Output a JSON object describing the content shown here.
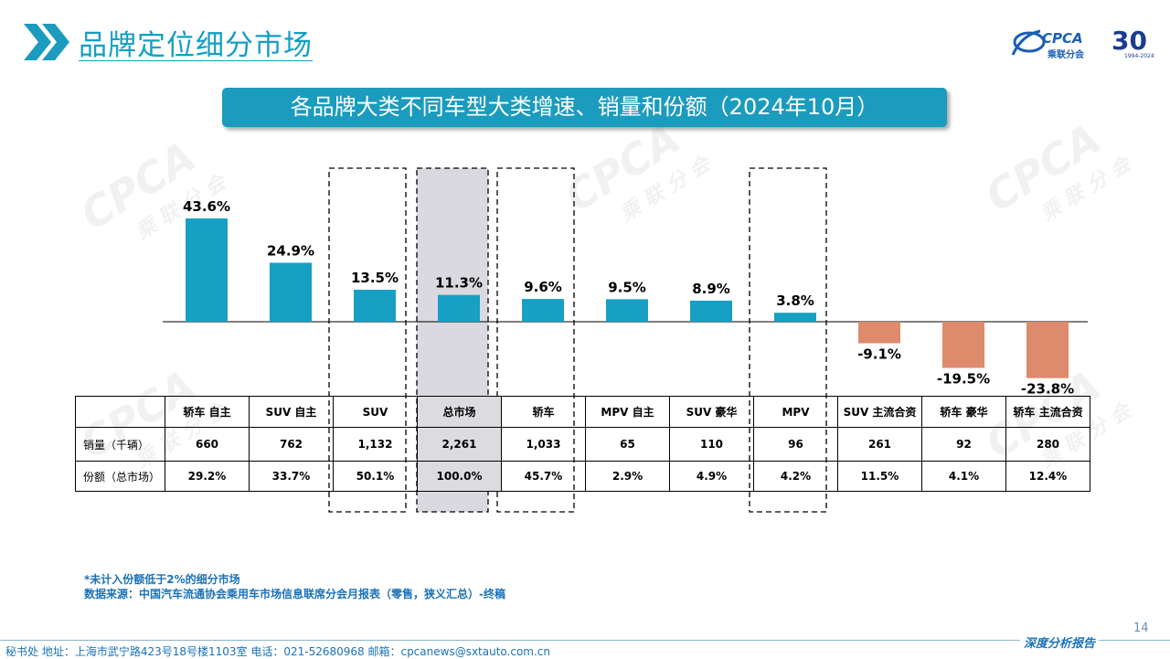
{
  "header": {
    "page_title": "品牌定位细分市场",
    "logo_text": "CPCA",
    "logo_subtext": "乘联分会",
    "logo_anniversary": "30",
    "logo_years": "1994-2024"
  },
  "watermark": {
    "big": "CPCA",
    "small": "乘 联 分 会"
  },
  "colors": {
    "positive": "#17a0c4",
    "negative": "#de8a6c",
    "highlight": "#d9d9df",
    "brand": "#1b9bbd",
    "note": "#1a72b8"
  },
  "chart_data": {
    "type": "bar",
    "title": "各品牌大类不同车型大类增速、销量和份额（2024年10月）",
    "categories": [
      "轿车 自主",
      "SUV 自主",
      "SUV",
      "总市场",
      "轿车",
      "MPV 自主",
      "SUV 豪华",
      "MPV",
      "SUV 主流合资",
      "轿车 豪华",
      "轿车 主流合资"
    ],
    "values": [
      43.6,
      24.9,
      13.5,
      11.3,
      9.6,
      9.5,
      8.9,
      3.8,
      -9.1,
      -19.5,
      -23.8
    ],
    "labels": [
      "43.6%",
      "24.9%",
      "13.5%",
      "11.3%",
      "9.6%",
      "9.5%",
      "8.9%",
      "3.8%",
      "-9.1%",
      "-19.5%",
      "-23.8%"
    ],
    "ylim": [
      -26,
      46
    ],
    "dashed_box_categories": [
      "SUV",
      "轿车",
      "MPV"
    ],
    "highlight_category": "总市场",
    "xlabel": "",
    "ylabel": ""
  },
  "table": {
    "rows": [
      {
        "label": "销量（千辆）",
        "values": [
          "660",
          "762",
          "1,132",
          "2,261",
          "1,033",
          "65",
          "110",
          "96",
          "261",
          "92",
          "280"
        ]
      },
      {
        "label": "份额（总市场）",
        "values": [
          "29.2%",
          "33.7%",
          "50.1%",
          "100.0%",
          "45.7%",
          "2.9%",
          "4.9%",
          "4.2%",
          "11.5%",
          "4.1%",
          "12.4%"
        ]
      }
    ]
  },
  "notes": {
    "note1": "*未计入份额低于2%的细分市场",
    "note2": "数据来源：中国汽车流通协会乘用车市场信息联席分会月报表（零售，狭义汇总）-终稿"
  },
  "page_number": "14",
  "footer": {
    "text": "秘书处   地址：上海市武宁路423号18号楼1103室   电话：021-52680968   邮箱：cpcanews@sxtauto.com.cn",
    "tag": "深度分析报告"
  }
}
